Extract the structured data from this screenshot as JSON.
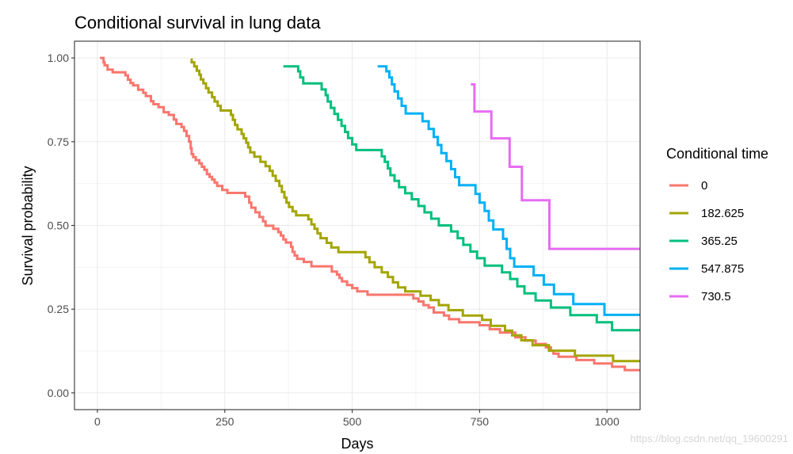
{
  "chart_data": {
    "type": "line",
    "step": true,
    "title": "Conditional survival in lung data",
    "xlabel": "Days",
    "ylabel": "Survival probability",
    "xlim": [
      -45,
      1065
    ],
    "ylim": [
      -0.05,
      1.05
    ],
    "xticks": [
      0,
      250,
      500,
      750,
      1000
    ],
    "yticks": [
      0.0,
      0.25,
      0.5,
      0.75,
      1.0
    ],
    "xtick_labels": [
      "0",
      "250",
      "500",
      "750",
      "1000"
    ],
    "ytick_labels": [
      "0.00",
      "0.25",
      "0.50",
      "0.75",
      "1.00"
    ],
    "grid": true,
    "legend": {
      "title": "Conditional time",
      "position": "right"
    },
    "series": [
      {
        "name": "0",
        "color": "#F8766D",
        "points": [
          [
            5,
            1.0
          ],
          [
            12,
            0.987
          ],
          [
            14,
            0.978
          ],
          [
            20,
            0.965
          ],
          [
            30,
            0.957
          ],
          [
            55,
            0.948
          ],
          [
            60,
            0.935
          ],
          [
            65,
            0.925
          ],
          [
            70,
            0.918
          ],
          [
            80,
            0.905
          ],
          [
            90,
            0.896
          ],
          [
            95,
            0.886
          ],
          [
            105,
            0.871
          ],
          [
            110,
            0.862
          ],
          [
            120,
            0.853
          ],
          [
            130,
            0.838
          ],
          [
            140,
            0.83
          ],
          [
            150,
            0.816
          ],
          [
            155,
            0.803
          ],
          [
            165,
            0.794
          ],
          [
            170,
            0.782
          ],
          [
            175,
            0.767
          ],
          [
            180,
            0.75
          ],
          [
            183,
            0.73
          ],
          [
            185,
            0.713
          ],
          [
            188,
            0.704
          ],
          [
            193,
            0.695
          ],
          [
            200,
            0.685
          ],
          [
            205,
            0.675
          ],
          [
            210,
            0.666
          ],
          [
            215,
            0.653
          ],
          [
            220,
            0.645
          ],
          [
            225,
            0.637
          ],
          [
            230,
            0.628
          ],
          [
            235,
            0.618
          ],
          [
            245,
            0.606
          ],
          [
            255,
            0.597
          ],
          [
            290,
            0.586
          ],
          [
            298,
            0.568
          ],
          [
            302,
            0.553
          ],
          [
            310,
            0.539
          ],
          [
            318,
            0.525
          ],
          [
            325,
            0.512
          ],
          [
            330,
            0.499
          ],
          [
            345,
            0.49
          ],
          [
            355,
            0.48
          ],
          [
            360,
            0.47
          ],
          [
            365,
            0.458
          ],
          [
            370,
            0.449
          ],
          [
            380,
            0.436
          ],
          [
            383,
            0.421
          ],
          [
            387,
            0.41
          ],
          [
            392,
            0.4
          ],
          [
            405,
            0.391
          ],
          [
            420,
            0.378
          ],
          [
            460,
            0.362
          ],
          [
            470,
            0.353
          ],
          [
            475,
            0.343
          ],
          [
            480,
            0.333
          ],
          [
            490,
            0.322
          ],
          [
            500,
            0.313
          ],
          [
            510,
            0.303
          ],
          [
            530,
            0.293
          ],
          [
            620,
            0.282
          ],
          [
            630,
            0.273
          ],
          [
            640,
            0.262
          ],
          [
            650,
            0.255
          ],
          [
            660,
            0.24
          ],
          [
            680,
            0.231
          ],
          [
            690,
            0.22
          ],
          [
            710,
            0.211
          ],
          [
            750,
            0.202
          ],
          [
            770,
            0.19
          ],
          [
            790,
            0.18
          ],
          [
            820,
            0.166
          ],
          [
            840,
            0.156
          ],
          [
            860,
            0.146
          ],
          [
            880,
            0.136
          ],
          [
            890,
            0.126
          ],
          [
            895,
            0.117
          ],
          [
            905,
            0.108
          ],
          [
            940,
            0.098
          ],
          [
            975,
            0.088
          ],
          [
            1010,
            0.078
          ],
          [
            1035,
            0.068
          ],
          [
            1085,
            0.051
          ],
          [
            1150,
            0.051
          ]
        ]
      },
      {
        "name": "182.625",
        "color": "#A3A500",
        "points": [
          [
            183,
            0.995
          ],
          [
            185,
            0.987
          ],
          [
            190,
            0.975
          ],
          [
            195,
            0.962
          ],
          [
            200,
            0.95
          ],
          [
            203,
            0.936
          ],
          [
            208,
            0.924
          ],
          [
            213,
            0.91
          ],
          [
            218,
            0.897
          ],
          [
            225,
            0.883
          ],
          [
            230,
            0.87
          ],
          [
            236,
            0.857
          ],
          [
            242,
            0.843
          ],
          [
            262,
            0.83
          ],
          [
            266,
            0.815
          ],
          [
            270,
            0.8
          ],
          [
            275,
            0.787
          ],
          [
            283,
            0.773
          ],
          [
            287,
            0.76
          ],
          [
            292,
            0.747
          ],
          [
            296,
            0.733
          ],
          [
            300,
            0.718
          ],
          [
            308,
            0.705
          ],
          [
            320,
            0.69
          ],
          [
            330,
            0.677
          ],
          [
            338,
            0.663
          ],
          [
            344,
            0.648
          ],
          [
            350,
            0.633
          ],
          [
            357,
            0.618
          ],
          [
            362,
            0.6
          ],
          [
            367,
            0.583
          ],
          [
            371,
            0.568
          ],
          [
            376,
            0.555
          ],
          [
            383,
            0.542
          ],
          [
            390,
            0.53
          ],
          [
            414,
            0.518
          ],
          [
            420,
            0.503
          ],
          [
            426,
            0.49
          ],
          [
            432,
            0.476
          ],
          [
            438,
            0.462
          ],
          [
            450,
            0.448
          ],
          [
            459,
            0.434
          ],
          [
            473,
            0.42
          ],
          [
            526,
            0.405
          ],
          [
            534,
            0.39
          ],
          [
            544,
            0.375
          ],
          [
            558,
            0.36
          ],
          [
            570,
            0.346
          ],
          [
            580,
            0.33
          ],
          [
            590,
            0.315
          ],
          [
            604,
            0.303
          ],
          [
            634,
            0.29
          ],
          [
            654,
            0.277
          ],
          [
            670,
            0.262
          ],
          [
            689,
            0.247
          ],
          [
            717,
            0.231
          ],
          [
            755,
            0.218
          ],
          [
            772,
            0.2
          ],
          [
            800,
            0.186
          ],
          [
            814,
            0.172
          ],
          [
            832,
            0.157
          ],
          [
            854,
            0.142
          ],
          [
            886,
            0.126
          ],
          [
            937,
            0.111
          ],
          [
            1012,
            0.095
          ],
          [
            1100,
            0.079
          ],
          [
            1150,
            0.079
          ]
        ]
      },
      {
        "name": "365.25",
        "color": "#00BF7D",
        "points": [
          [
            365,
            0.975
          ],
          [
            394,
            0.96
          ],
          [
            398,
            0.942
          ],
          [
            404,
            0.924
          ],
          [
            440,
            0.906
          ],
          [
            448,
            0.889
          ],
          [
            452,
            0.87
          ],
          [
            458,
            0.851
          ],
          [
            465,
            0.833
          ],
          [
            472,
            0.815
          ],
          [
            479,
            0.797
          ],
          [
            486,
            0.779
          ],
          [
            492,
            0.761
          ],
          [
            500,
            0.742
          ],
          [
            508,
            0.725
          ],
          [
            558,
            0.706
          ],
          [
            564,
            0.69
          ],
          [
            570,
            0.67
          ],
          [
            575,
            0.65
          ],
          [
            583,
            0.633
          ],
          [
            592,
            0.614
          ],
          [
            604,
            0.596
          ],
          [
            617,
            0.578
          ],
          [
            630,
            0.558
          ],
          [
            642,
            0.539
          ],
          [
            655,
            0.52
          ],
          [
            670,
            0.5
          ],
          [
            694,
            0.482
          ],
          [
            707,
            0.462
          ],
          [
            718,
            0.442
          ],
          [
            732,
            0.422
          ],
          [
            745,
            0.402
          ],
          [
            760,
            0.38
          ],
          [
            794,
            0.36
          ],
          [
            810,
            0.34
          ],
          [
            824,
            0.318
          ],
          [
            838,
            0.297
          ],
          [
            860,
            0.276
          ],
          [
            890,
            0.255
          ],
          [
            928,
            0.232
          ],
          [
            980,
            0.211
          ],
          [
            1010,
            0.187
          ],
          [
            1100,
            0.16
          ],
          [
            1150,
            0.16
          ]
        ]
      },
      {
        "name": "547.875",
        "color": "#00B0F6",
        "points": [
          [
            550,
            0.975
          ],
          [
            567,
            0.96
          ],
          [
            573,
            0.942
          ],
          [
            578,
            0.921
          ],
          [
            583,
            0.9
          ],
          [
            590,
            0.879
          ],
          [
            597,
            0.857
          ],
          [
            605,
            0.834
          ],
          [
            638,
            0.811
          ],
          [
            650,
            0.788
          ],
          [
            660,
            0.764
          ],
          [
            668,
            0.74
          ],
          [
            675,
            0.716
          ],
          [
            685,
            0.692
          ],
          [
            694,
            0.668
          ],
          [
            702,
            0.644
          ],
          [
            710,
            0.62
          ],
          [
            742,
            0.594
          ],
          [
            750,
            0.568
          ],
          [
            760,
            0.543
          ],
          [
            768,
            0.515
          ],
          [
            777,
            0.488
          ],
          [
            796,
            0.46
          ],
          [
            803,
            0.43
          ],
          [
            810,
            0.402
          ],
          [
            818,
            0.377
          ],
          [
            856,
            0.351
          ],
          [
            876,
            0.323
          ],
          [
            896,
            0.295
          ],
          [
            934,
            0.265
          ],
          [
            995,
            0.233
          ],
          [
            1150,
            0.233
          ]
        ]
      },
      {
        "name": "730.5",
        "color": "#E76BF3",
        "points": [
          [
            733,
            0.921
          ],
          [
            740,
            0.84
          ],
          [
            773,
            0.76
          ],
          [
            809,
            0.675
          ],
          [
            833,
            0.575
          ],
          [
            887,
            0.43
          ],
          [
            1150,
            0.43
          ]
        ]
      }
    ]
  },
  "watermark": "https://blog.csdn.net/qq_19600291"
}
